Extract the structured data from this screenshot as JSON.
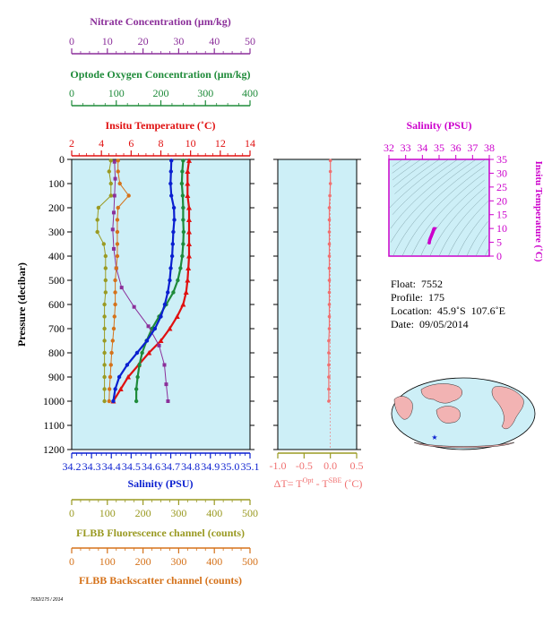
{
  "colors": {
    "nitrate": "#8b2f9a",
    "oxygen": "#1f8b3a",
    "temperature": "#e01010",
    "salinity": "#0a1fd0",
    "fluorescence": "#9a9a22",
    "backscatter": "#d5721a",
    "delta_t": "#f07070",
    "ts_axis": "#cc00cc",
    "panel_bg": "#cdeff7"
  },
  "axes": {
    "nitrate_title": "Nitrate Concentration (μm/kg)",
    "oxygen_title": "Optode Oxygen Concentration (μm/kg)",
    "temperature_title": "Insitu Temperature (˚C)",
    "pressure_title": "Pressure (decibar)",
    "salinity_title": "Salinity (PSU)",
    "fluorescence_title": "FLBB Fluorescence channel (counts)",
    "backscatter_title": "FLBB Backscatter channel (counts)",
    "delta_t_title": "ΔT= T^Opt - T^SBE (˚C)",
    "ts_salinity_title": "Salinity (PSU)",
    "ts_temperature_title": "Insitu Temperature (˚C)"
  },
  "info": {
    "float": "Float:  7552",
    "profile": "Profile:  175",
    "location": "Location:  45.9˚S  107.6˚E",
    "date": "Date:  09/05/2014"
  },
  "footer": "7552/175 / 2014",
  "chart_data": [
    {
      "type": "line",
      "title": "Profile",
      "ylabel": "Pressure (decibar)",
      "ylim": [
        1200,
        0
      ],
      "yticks": [
        0,
        100,
        200,
        300,
        400,
        500,
        600,
        700,
        800,
        900,
        1000,
        1100,
        1200
      ],
      "x_axes": {
        "temperature": {
          "label": "Insitu Temperature (˚C)",
          "lim": [
            2,
            14
          ],
          "ticks": [
            2,
            4,
            6,
            8,
            10,
            12,
            14
          ]
        },
        "oxygen": {
          "label": "Optode Oxygen Concentration (μm/kg)",
          "lim": [
            0,
            400
          ],
          "ticks": [
            0,
            100,
            200,
            300,
            400
          ]
        },
        "nitrate": {
          "label": "Nitrate Concentration (μm/kg)",
          "lim": [
            0,
            50
          ],
          "ticks": [
            0,
            10,
            20,
            30,
            40,
            50
          ]
        },
        "salinity": {
          "label": "Salinity (PSU)",
          "lim": [
            34.2,
            35.1
          ],
          "ticks": [
            34.2,
            34.3,
            34.4,
            34.5,
            34.6,
            34.7,
            34.8,
            34.9,
            35.0,
            35.1
          ],
          "tick_labels": [
            "34.2",
            "34.3",
            "34.4",
            "34.5",
            "34.6",
            "34.7",
            "34.8",
            "34.9",
            "35.0",
            "35.1"
          ]
        },
        "fluorescence": {
          "label": "FLBB Fluorescence channel (counts)",
          "lim": [
            0,
            500
          ],
          "ticks": [
            0,
            100,
            200,
            300,
            400,
            500
          ]
        },
        "backscatter": {
          "label": "FLBB Backscatter channel (counts)",
          "lim": [
            0,
            500
          ],
          "ticks": [
            0,
            100,
            200,
            300,
            400,
            500
          ]
        }
      },
      "series": [
        {
          "name": "Insitu Temperature (˚C)",
          "axis": "temperature",
          "marker": "triangle",
          "p": [
            5,
            50,
            100,
            150,
            200,
            250,
            300,
            350,
            400,
            450,
            500,
            550,
            600,
            650,
            700,
            750,
            800,
            850,
            900,
            950,
            1000
          ],
          "v": [
            9.9,
            9.8,
            9.8,
            9.8,
            9.9,
            9.9,
            9.9,
            9.9,
            9.9,
            9.85,
            9.8,
            9.7,
            9.5,
            9.1,
            8.6,
            8.0,
            7.2,
            6.5,
            5.8,
            5.3,
            4.8
          ]
        },
        {
          "name": "Optode Oxygen Concentration (μm/kg)",
          "axis": "oxygen",
          "marker": "circle",
          "p": [
            5,
            50,
            100,
            150,
            200,
            250,
            300,
            350,
            400,
            450,
            500,
            550,
            600,
            650,
            700,
            750,
            800,
            850,
            900,
            950,
            1000
          ],
          "v": [
            250,
            248,
            247,
            249,
            250,
            250,
            251,
            250,
            248,
            244,
            238,
            228,
            212,
            196,
            180,
            168,
            158,
            152,
            148,
            145,
            145
          ]
        },
        {
          "name": "Nitrate Concentration (μm/kg)",
          "axis": "nitrate",
          "marker": "square",
          "p": [
            10,
            80,
            150,
            220,
            290,
            370,
            450,
            530,
            610,
            690,
            770,
            850,
            930,
            1000
          ],
          "v": [
            12.0,
            12.2,
            12.0,
            11.8,
            11.5,
            11.8,
            12.5,
            14.0,
            17.5,
            21.5,
            24.5,
            26.0,
            26.5,
            27.0
          ]
        },
        {
          "name": "Salinity (PSU)",
          "axis": "salinity",
          "marker": "circle",
          "p": [
            5,
            50,
            100,
            150,
            200,
            250,
            300,
            350,
            400,
            450,
            500,
            550,
            600,
            650,
            700,
            750,
            800,
            850,
            900,
            950,
            1000
          ],
          "v": [
            34.703,
            34.701,
            34.699,
            34.703,
            34.716,
            34.718,
            34.713,
            34.71,
            34.707,
            34.7,
            34.695,
            34.685,
            34.67,
            34.65,
            34.62,
            34.58,
            34.53,
            34.48,
            34.44,
            34.42,
            34.41
          ]
        },
        {
          "name": "FLBB Fluorescence channel (counts)",
          "axis": "fluorescence",
          "marker": "circle",
          "p": [
            5,
            50,
            100,
            150,
            200,
            250,
            300,
            350,
            400,
            450,
            500,
            550,
            600,
            650,
            700,
            750,
            800,
            850,
            900,
            950,
            1000
          ],
          "v": [
            110,
            105,
            110,
            110,
            75,
            72,
            72,
            90,
            95,
            95,
            95,
            95,
            92,
            92,
            92,
            92,
            92,
            92,
            92,
            92,
            92
          ]
        },
        {
          "name": "FLBB Backscatter channel (counts)",
          "axis": "backscatter",
          "marker": "circle",
          "p": [
            5,
            50,
            100,
            150,
            200,
            250,
            300,
            350,
            400,
            450,
            500,
            550,
            600,
            650,
            700,
            750,
            800,
            850,
            900,
            950,
            1000
          ],
          "v": [
            130,
            130,
            135,
            160,
            130,
            128,
            128,
            128,
            128,
            125,
            122,
            122,
            122,
            120,
            118,
            115,
            112,
            110,
            108,
            106,
            105
          ]
        }
      ]
    },
    {
      "type": "scatter",
      "title": "ΔT= T^Opt - T^SBE (˚C)",
      "xlim": [
        -1.0,
        0.5
      ],
      "ylim": [
        1200,
        0
      ],
      "xticks": [
        -1.0,
        -0.5,
        0.0,
        0.5
      ],
      "xtick_labels": [
        "-1.0",
        "-0.5",
        "0.0",
        "0.5"
      ],
      "p": [
        5,
        50,
        100,
        150,
        200,
        250,
        300,
        350,
        400,
        450,
        500,
        550,
        600,
        650,
        700,
        750,
        800,
        850,
        900,
        950,
        1000
      ],
      "v": [
        0.0,
        0.0,
        0.0,
        -0.01,
        -0.02,
        -0.02,
        -0.02,
        -0.02,
        -0.02,
        -0.02,
        -0.02,
        -0.02,
        -0.02,
        -0.02,
        -0.02,
        -0.03,
        -0.03,
        -0.03,
        -0.03,
        -0.03,
        -0.03
      ]
    },
    {
      "type": "scatter",
      "xlabel": "Salinity (PSU)",
      "ylabel": "Insitu Temperature (˚C)",
      "xlim": [
        32,
        38
      ],
      "ylim": [
        0,
        35
      ],
      "xticks": [
        32,
        33,
        34,
        35,
        36,
        37,
        38
      ],
      "yticks": [
        0,
        5,
        10,
        15,
        20,
        25,
        30,
        35
      ],
      "points": [
        [
          34.41,
          4.8
        ],
        [
          34.44,
          5.8
        ],
        [
          34.48,
          6.5
        ],
        [
          34.53,
          7.2
        ],
        [
          34.58,
          8.0
        ],
        [
          34.62,
          8.6
        ],
        [
          34.65,
          9.1
        ],
        [
          34.67,
          9.5
        ],
        [
          34.69,
          9.8
        ],
        [
          34.7,
          9.9
        ],
        [
          34.71,
          9.9
        ],
        [
          34.7,
          9.8
        ]
      ]
    }
  ]
}
